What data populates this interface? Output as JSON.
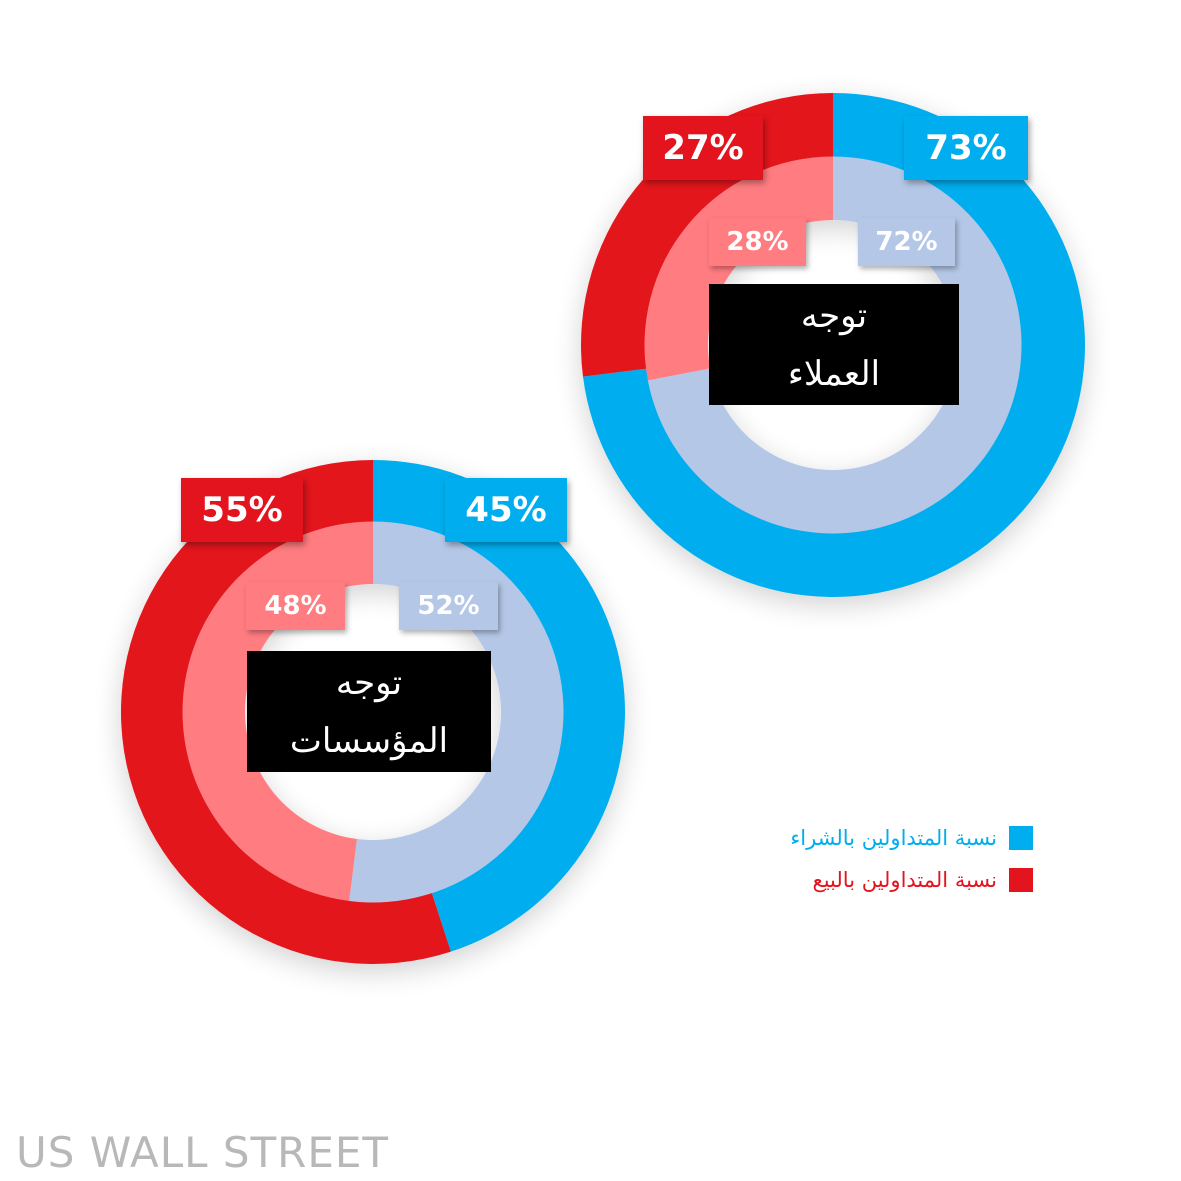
{
  "colors": {
    "buy_outer": "#00aeef",
    "sell_outer": "#e3141e",
    "buy_inner": "#b4c7e7",
    "sell_inner": "#ff7c80"
  },
  "chart_data": [
    {
      "type": "pie",
      "center_label_line1": "توجه",
      "center_label_line2": "العملاء",
      "outer": {
        "buy": 73,
        "sell": 27,
        "buy_label": "73%",
        "sell_label": "27%"
      },
      "inner": {
        "buy": 72,
        "sell": 28,
        "buy_label": "72%",
        "sell_label": "28%"
      }
    },
    {
      "type": "pie",
      "center_label_line1": "توجه",
      "center_label_line2": "المؤسسات",
      "outer": {
        "buy": 45,
        "sell": 55,
        "buy_label": "45%",
        "sell_label": "55%"
      },
      "inner": {
        "buy": 52,
        "sell": 48,
        "buy_label": "52%",
        "sell_label": "48%"
      }
    }
  ],
  "legend": {
    "buy": "نسبة المتداولين بالشراء",
    "sell": "نسبة المتداولين بالبيع"
  },
  "brand": "US WALL STREET"
}
